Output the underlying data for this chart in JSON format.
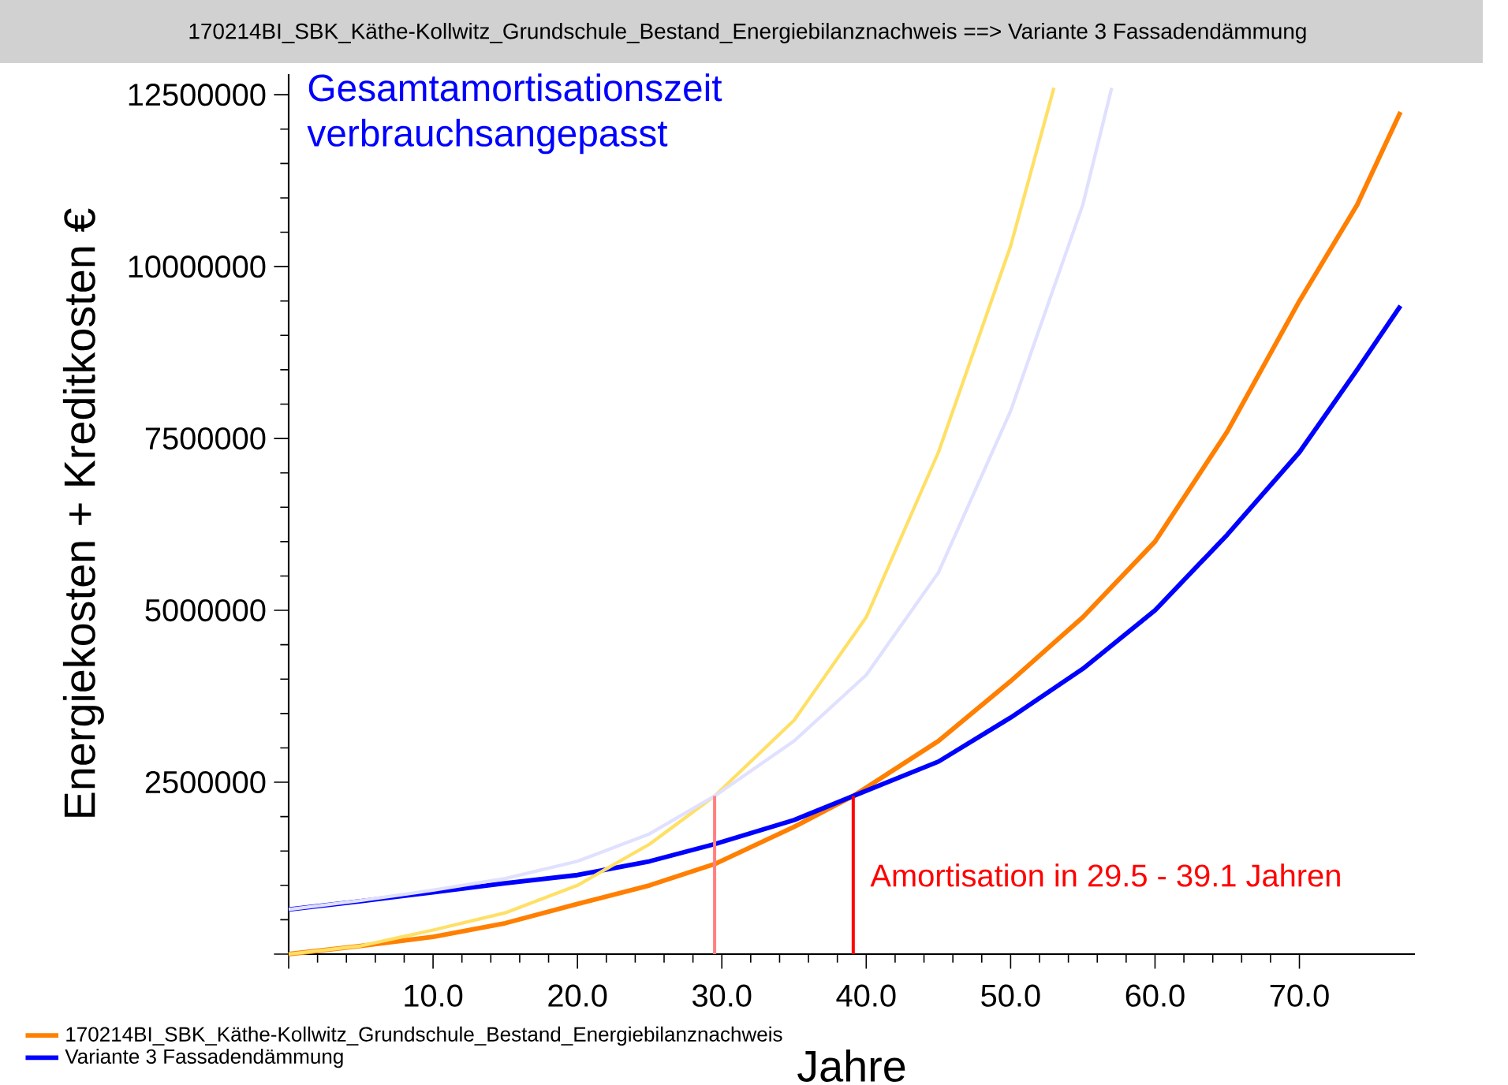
{
  "chart_data": {
    "type": "line",
    "title": "170214BI_SBK_Käthe-Kollwitz_Grundschule_Bestand_Energiebilanznachweis ==> Variante 3 Fassadendämmung",
    "subtitle": "Gesamtamortisationszeit verbrauchsangepasst",
    "xlabel": "Jahre",
    "ylabel": "Energiekosten + Kreditkosten €",
    "annotations": [
      "Amortisation in 29.5 - 39.1 Jahren"
    ],
    "xlim": [
      0,
      78
    ],
    "ylim": [
      0,
      12800000
    ],
    "xticks": [
      {
        "value": 0,
        "label": null
      },
      {
        "value": 10,
        "label": "10.0"
      },
      {
        "value": 20,
        "label": "20.0"
      },
      {
        "value": 30,
        "label": "30.0"
      },
      {
        "value": 40,
        "label": "40.0"
      },
      {
        "value": 50,
        "label": "50.0"
      },
      {
        "value": 60,
        "label": "60.0"
      },
      {
        "value": 70,
        "label": "70.0"
      }
    ],
    "yticks": [
      {
        "value": 0,
        "label": null
      },
      2500000,
      5000000,
      7500000,
      10000000,
      12500000
    ],
    "grid": false,
    "marker": "none",
    "line_style": "solid",
    "legend": "bottom left",
    "ref_lines": [
      {
        "axis": "x",
        "value": 29.5,
        "color": "#ff8080"
      },
      {
        "axis": "x",
        "value": 39.1,
        "color": "#ff0000"
      }
    ],
    "series": [
      {
        "name": "170214BI_SBK_Käthe-Kollwitz_Grundschule_Bestand_Energiebilanznachweis",
        "color": "#ff7f00",
        "x": [
          0,
          5,
          10,
          15,
          20,
          25,
          29.5,
          35,
          39.1,
          45,
          50,
          55,
          60,
          65,
          70,
          74,
          77
        ],
        "values": [
          0,
          120000,
          250000,
          450000,
          730000,
          1000000,
          1310000,
          1850000,
          2300000,
          3100000,
          3970000,
          4900000,
          6000000,
          7600000,
          9500000,
          10900000,
          12250000
        ]
      },
      {
        "name": "Variante 3 Fassadendämmung",
        "color": "#0000ff",
        "x": [
          0,
          5,
          10,
          15,
          20,
          25,
          29.5,
          35,
          39.1,
          45,
          50,
          55,
          60,
          65,
          70,
          74,
          77
        ],
        "values": [
          650000,
          770000,
          900000,
          1030000,
          1150000,
          1350000,
          1600000,
          1950000,
          2300000,
          2800000,
          3440000,
          4150000,
          5000000,
          6100000,
          7300000,
          8500000,
          9430000
        ]
      },
      {
        "color": "#ffe066",
        "x": [
          0,
          5,
          10,
          15,
          20,
          25,
          29.5,
          35,
          40,
          45,
          50,
          53
        ],
        "values": [
          0,
          120000,
          350000,
          600000,
          1000000,
          1600000,
          2300000,
          3400000,
          4900000,
          7300000,
          10300000,
          12600000
        ]
      },
      {
        "color": "#e0e0ff",
        "x": [
          0,
          5,
          10,
          15,
          20,
          25,
          29.5,
          35,
          40,
          45,
          50,
          55,
          57
        ],
        "values": [
          650000,
          780000,
          930000,
          1100000,
          1350000,
          1750000,
          2300000,
          3100000,
          4060000,
          5550000,
          7900000,
          10900000,
          12600000
        ]
      }
    ]
  }
}
